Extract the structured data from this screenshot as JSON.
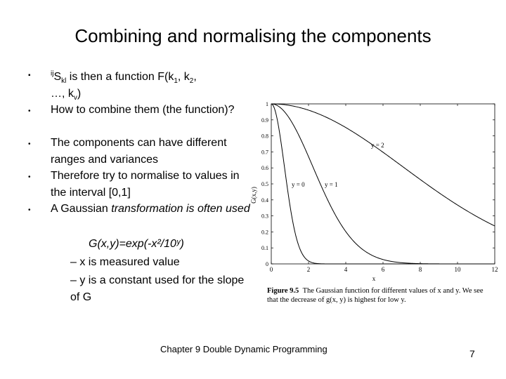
{
  "slide": {
    "title": "Combining and normalising the components",
    "bullet1_pre": "ij",
    "bullet1_S": "S",
    "bullet1_kl": "kl",
    "bullet1_mid": "  is then a function F(k",
    "bullet1_rest": "…, k",
    "bullet2": "How to combine them (the function)?",
    "bullet3": "The components can have different ranges and variances",
    "bullet4": "Therefore try to normalise to values in the interval [0,1]",
    "bullet5_a": "A Gaussian ",
    "bullet5_b": "transformation is often used",
    "formula": "G(x,y)=exp(-x²/10ʸ)",
    "sub1": "– x is measured value",
    "sub2": "– y is a constant used for the slope of G",
    "footer": "Chapter 9 Double Dynamic Programming",
    "page_number": "7"
  },
  "figure": {
    "caption_label": "Figure 9.5",
    "caption_text": "The Gaussian function for different values of x and y. We see that the decrease of g(x, y) is highest for low y.",
    "ylabel": "G(x,y)",
    "xlabel": "x",
    "curve_labels": [
      "y = 0",
      "y = 1",
      "y = 2"
    ]
  },
  "chart_data": {
    "type": "line",
    "xlabel": "x",
    "ylabel": "G(x,y)",
    "xlim": [
      0,
      12
    ],
    "ylim": [
      0,
      1
    ],
    "x_ticks": [
      0,
      2,
      4,
      6,
      8,
      10,
      12
    ],
    "y_ticks": [
      0,
      0.1,
      0.2,
      0.3,
      0.4,
      0.5,
      0.6,
      0.7,
      0.8,
      0.9,
      1
    ],
    "series": [
      {
        "name": "y = 0",
        "y_param": 0
      },
      {
        "name": "y = 1",
        "y_param": 1
      },
      {
        "name": "y = 2",
        "y_param": 2
      }
    ]
  }
}
